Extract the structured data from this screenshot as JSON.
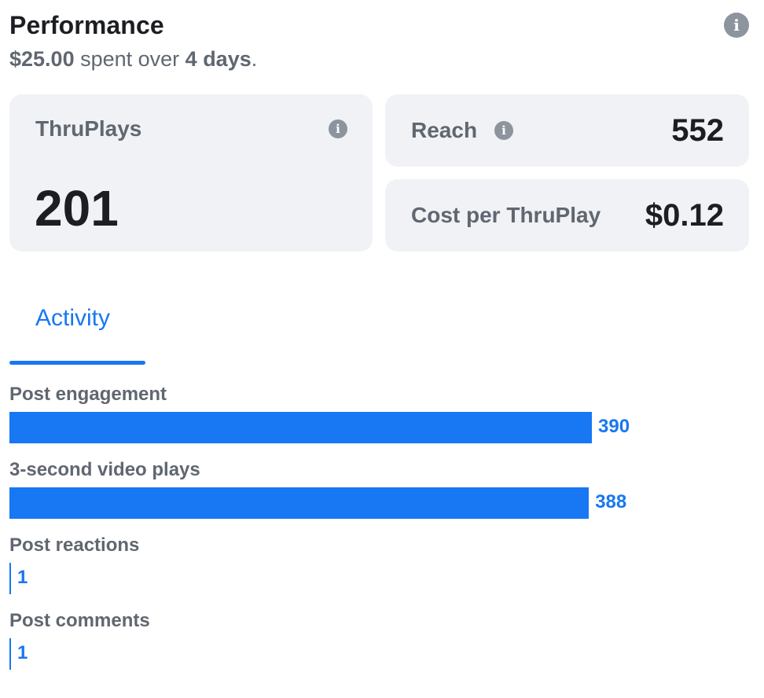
{
  "header": {
    "title": "Performance",
    "spent_amount": "$25.00",
    "spent_text": " spent over ",
    "duration": "4 days",
    "period": ".",
    "info_icon": "info-icon"
  },
  "cards": {
    "thruplays": {
      "label": "ThruPlays",
      "value": "201"
    },
    "reach": {
      "label": "Reach",
      "value": "552"
    },
    "cost_per_thruplay": {
      "label": "Cost per ThruPlay",
      "value": "$0.12"
    }
  },
  "tabs": [
    {
      "label": "Activity",
      "active": true
    }
  ],
  "colors": {
    "accent": "#1877f2",
    "card_bg": "#f0f2f5",
    "muted_text": "#606770",
    "dark_text": "#1c1e21"
  },
  "chart_data": {
    "type": "bar",
    "orientation": "horizontal",
    "categories": [
      "Post engagement",
      "3-second video plays",
      "Post reactions",
      "Post comments"
    ],
    "values": [
      390,
      388,
      1,
      1
    ],
    "value_labels": [
      "390",
      "388",
      "1",
      "1"
    ]
  }
}
